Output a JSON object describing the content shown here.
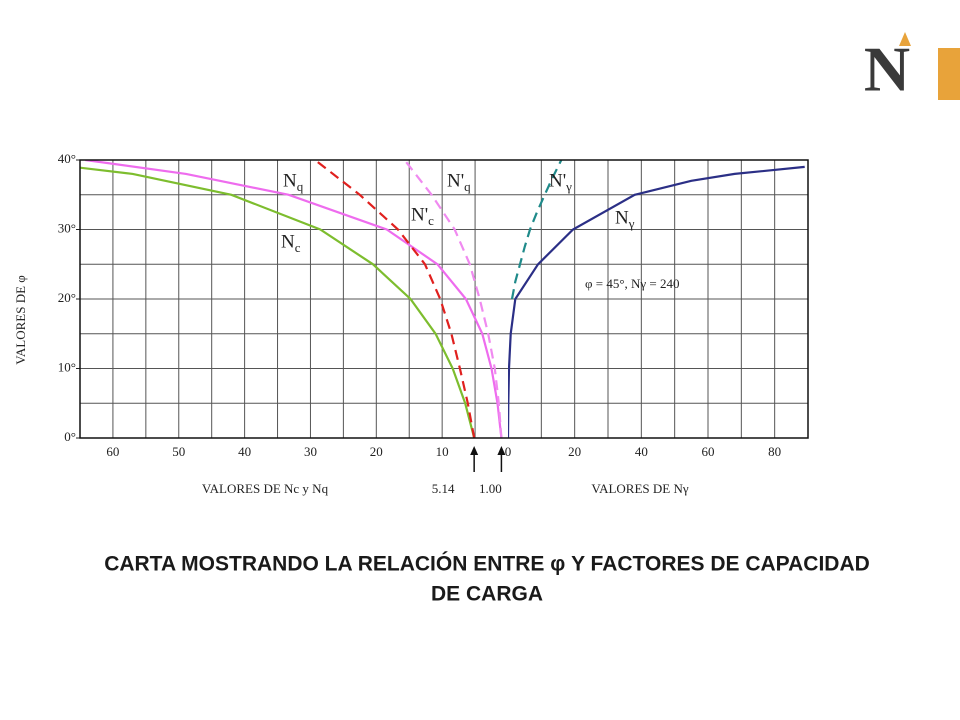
{
  "logo": "N",
  "caption": [
    "CARTA MOSTRANDO LA RELACIÓN ENTRE φ Y FACTORES DE CAPACIDAD",
    "DE CARGA"
  ],
  "chart_data": [
    {
      "type": "line",
      "xlabel": "VALORES DE Nc y Nq",
      "ylabel": "VALORES DE φ",
      "xlim": [
        65,
        0
      ],
      "xticks": [
        60,
        50,
        40,
        30,
        20,
        10
      ],
      "ylim": [
        0,
        40
      ],
      "yticks": [
        {
          "value": 0,
          "label": "0°"
        },
        {
          "value": 10,
          "label": "10°"
        },
        {
          "value": 20,
          "label": "20°"
        },
        {
          "value": 30,
          "label": "30°"
        },
        {
          "value": 40,
          "label": "40°"
        }
      ],
      "grid": true,
      "markers": [
        {
          "value": 5.14,
          "label": "5.14"
        },
        {
          "value": 1.0,
          "label": "1.00"
        }
      ],
      "series": [
        {
          "name": "Nq",
          "color": "#ee6cee",
          "dash": false,
          "x": [
            1.0,
            1.6,
            2.5,
            3.9,
            6.4,
            10.7,
            18.4,
            33.3,
            48.9,
            64.2
          ],
          "values": [
            0,
            5,
            10,
            15,
            20,
            25,
            30,
            35,
            38,
            40
          ]
        },
        {
          "name": "N'q",
          "color": "#f08af0",
          "dash": true,
          "x": [
            1.0,
            1.4,
            2.0,
            3.0,
            4.3,
            5.8,
            8.1,
            11.6,
            15.7
          ],
          "values": [
            0,
            5,
            10,
            15,
            20,
            25,
            30,
            35,
            40
          ]
        },
        {
          "name": "Nc",
          "color": "#7dbd2e",
          "dash": false,
          "x": [
            5.14,
            6.5,
            8.4,
            11,
            14.8,
            20.5,
            28.5,
            42,
            57,
            66
          ],
          "values": [
            0,
            5,
            10,
            15,
            20,
            25,
            30,
            35,
            38,
            39
          ]
        },
        {
          "name": "N'c",
          "color": "#e0201e",
          "dash": true,
          "x": [
            5.14,
            6.1,
            7.3,
            8.6,
            10.3,
            12.6,
            16.7,
            22.5,
            29.3
          ],
          "values": [
            0,
            5,
            10,
            15,
            20,
            25,
            30,
            35,
            40
          ]
        }
      ]
    },
    {
      "type": "line",
      "xlabel": "VALORES DE Nγ",
      "xlim": [
        0,
        90
      ],
      "xticks": [
        0,
        20,
        40,
        60,
        80
      ],
      "ylim": [
        0,
        40
      ],
      "grid": true,
      "annotation": "φ = 45°, Nγ = 240",
      "series": [
        {
          "name": "N'γ",
          "color": "#1f8a8a",
          "dash": true,
          "x": [
            1.2,
            2.2,
            3.6,
            5,
            6.6,
            8.7,
            11,
            13.4,
            16
          ],
          "values": [
            20,
            22.5,
            25,
            27.5,
            30,
            32.5,
            35,
            37.5,
            40
          ]
        },
        {
          "name": "Nγ",
          "color": "#2b2f86",
          "dash": false,
          "x": [
            0,
            0.1,
            0.3,
            0.8,
            2.2,
            9,
            19.5,
            38,
            55,
            68,
            89
          ],
          "values": [
            0,
            5,
            10,
            15,
            20,
            25,
            30,
            35,
            37,
            38,
            39
          ]
        }
      ]
    }
  ]
}
